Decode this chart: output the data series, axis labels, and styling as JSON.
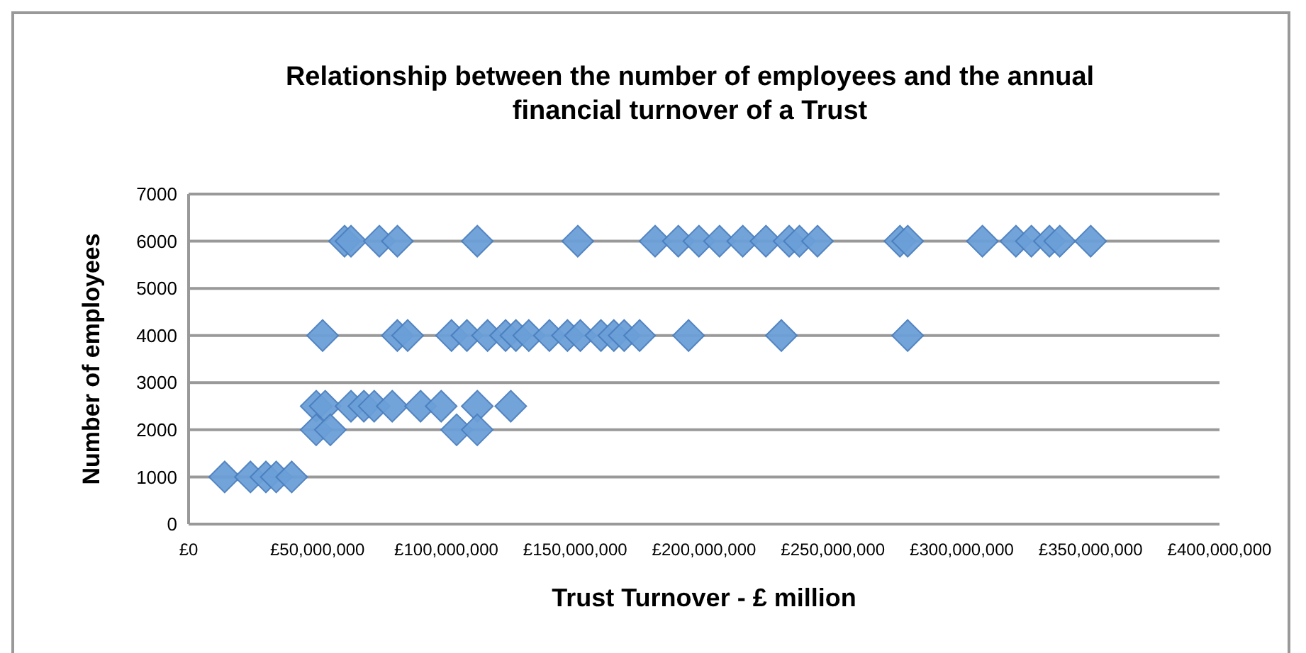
{
  "chart_data": {
    "type": "scatter",
    "title": "Relationship between the number of employees and the annual financial turnover of a Trust",
    "xlabel": "Trust Turnover - £ million",
    "ylabel": "Number of employees",
    "xlim": [
      0,
      400000000
    ],
    "xticks": [
      {
        "value": 0,
        "label": "£0"
      },
      {
        "value": 50000000,
        "label": "£50,000,000"
      },
      {
        "value": 100000000,
        "label": "£100,000,000"
      },
      {
        "value": 150000000,
        "label": "£150,000,000"
      },
      {
        "value": 200000000,
        "label": "£200,000,000"
      },
      {
        "value": 250000000,
        "label": "£250,000,000"
      },
      {
        "value": 300000000,
        "label": "£300,000,000"
      },
      {
        "value": 350000000,
        "label": "£350,000,000"
      },
      {
        "value": 400000000,
        "label": "£400,000,000"
      }
    ],
    "ylim": [
      0,
      7000
    ],
    "yticks": [
      0,
      1000,
      2000,
      3000,
      4000,
      5000,
      6000,
      7000
    ],
    "grid": "y",
    "marker": "diamond",
    "series": [
      {
        "color": "#6b9fd8",
        "x": [
          60500000,
          63000000,
          74000000,
          81000000,
          112000000,
          151000000,
          181000000,
          190000000,
          198000000,
          206000000,
          215000000,
          224000000,
          233000000,
          237000000,
          244000000,
          276000000,
          279000000,
          308000000,
          321000000,
          327000000,
          334000000,
          338000000,
          350000000,
          52000000,
          81000000,
          85000000,
          102000000,
          108000000,
          116000000,
          123000000,
          127000000,
          132000000,
          140000000,
          147000000,
          152000000,
          160000000,
          165000000,
          169000000,
          175000000,
          194000000,
          230000000,
          279000000,
          49500000,
          53000000,
          63000000,
          68000000,
          72000000,
          79000000,
          90000000,
          98000000,
          112000000,
          125000000,
          49500000,
          55000000,
          104000000,
          112000000,
          14000000,
          24000000,
          30000000,
          34000000,
          40000000
        ],
        "values": [
          6000,
          6000,
          6000,
          6000,
          6000,
          6000,
          6000,
          6000,
          6000,
          6000,
          6000,
          6000,
          6000,
          6000,
          6000,
          6000,
          6000,
          6000,
          6000,
          6000,
          6000,
          6000,
          6000,
          4000,
          4000,
          4000,
          4000,
          4000,
          4000,
          4000,
          4000,
          4000,
          4000,
          4000,
          4000,
          4000,
          4000,
          4000,
          4000,
          4000,
          4000,
          4000,
          2500,
          2500,
          2500,
          2500,
          2500,
          2500,
          2500,
          2500,
          2500,
          2500,
          2000,
          2000,
          2000,
          2000,
          1000,
          1000,
          1000,
          1000,
          1000
        ]
      }
    ]
  }
}
